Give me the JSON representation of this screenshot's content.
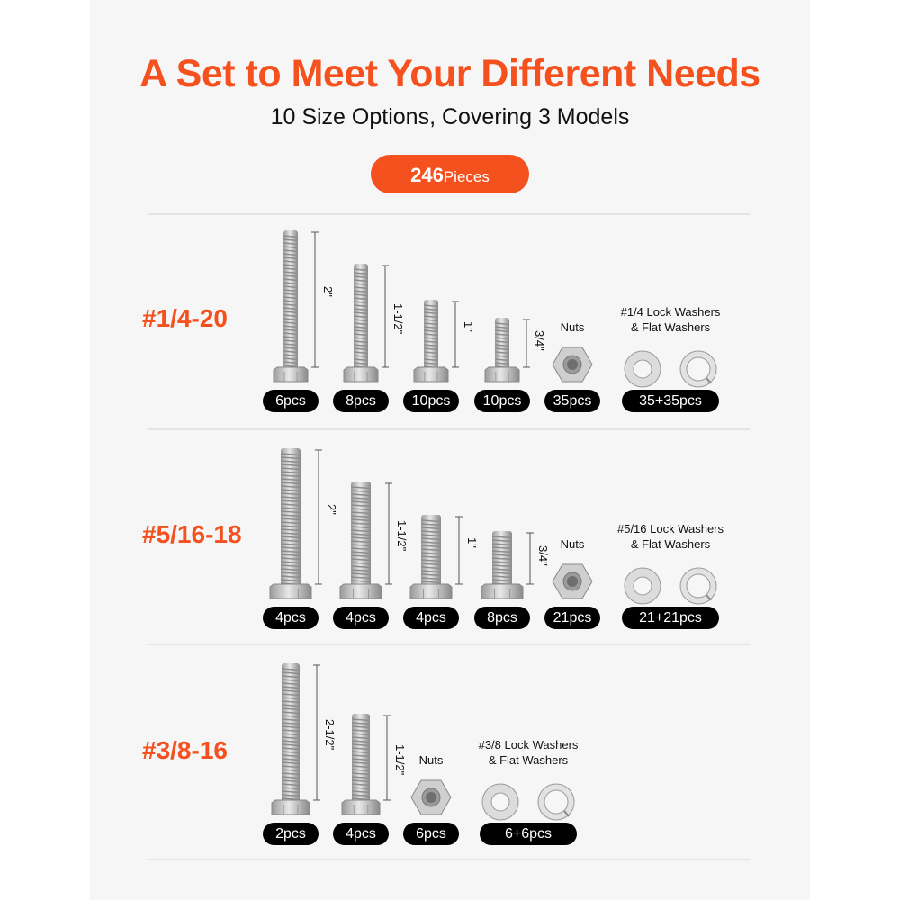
{
  "header": {
    "title": "A Set to Meet Your Different Needs",
    "subtitle": "10 Size Options, Covering 3 Models",
    "badge_number": "246",
    "badge_unit": "Pieces"
  },
  "colors": {
    "accent": "#f4511e",
    "pill": "#000000",
    "background": "#f6f6f6"
  },
  "rows": [
    {
      "label": "#1/4-20",
      "items": [
        {
          "type": "bolt",
          "length": "2\"",
          "count": "6pcs"
        },
        {
          "type": "bolt",
          "length": "1-1/2\"",
          "count": "8pcs"
        },
        {
          "type": "bolt",
          "length": "1\"",
          "count": "10pcs"
        },
        {
          "type": "bolt",
          "length": "3/4\"",
          "count": "10pcs"
        },
        {
          "type": "nut",
          "caption": [
            "Nuts"
          ],
          "count": "35pcs"
        },
        {
          "type": "washers",
          "caption": [
            "#1/4 Lock Washers",
            "& Flat Washers"
          ],
          "count": "35+35pcs"
        }
      ]
    },
    {
      "label": "#5/16-18",
      "items": [
        {
          "type": "bolt",
          "length": "2\"",
          "count": "4pcs"
        },
        {
          "type": "bolt",
          "length": "1-1/2\"",
          "count": "4pcs"
        },
        {
          "type": "bolt",
          "length": "1\"",
          "count": "4pcs"
        },
        {
          "type": "bolt",
          "length": "3/4\"",
          "count": "8pcs"
        },
        {
          "type": "nut",
          "caption": [
            "Nuts"
          ],
          "count": "21pcs"
        },
        {
          "type": "washers",
          "caption": [
            "#5/16 Lock Washers",
            "& Flat Washers"
          ],
          "count": "21+21pcs"
        }
      ]
    },
    {
      "label": "#3/8-16",
      "items": [
        {
          "type": "bolt",
          "length": "2-1/2\"",
          "count": "2pcs"
        },
        {
          "type": "bolt",
          "length": "1-1/2\"",
          "count": "4pcs"
        },
        {
          "type": "nut",
          "caption": [
            "Nuts"
          ],
          "count": "6pcs"
        },
        {
          "type": "washers",
          "caption": [
            "#3/8 Lock Washers",
            "& Flat Washers"
          ],
          "count": "6+6pcs"
        }
      ]
    }
  ]
}
